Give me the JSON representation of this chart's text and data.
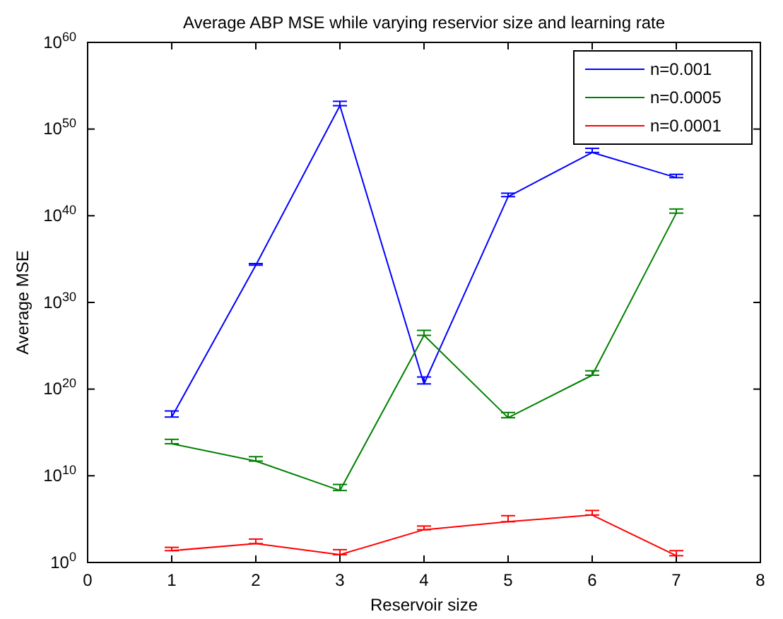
{
  "chart_data": {
    "type": "line",
    "title": "Average ABP MSE while varying reservior size and learning rate",
    "xlabel": "Reservoir size",
    "ylabel": "Average MSE",
    "log": "y",
    "x": [
      1,
      2,
      3,
      4,
      5,
      6,
      7
    ],
    "xlim": [
      0,
      8
    ],
    "xticks": [
      0,
      1,
      2,
      3,
      4,
      5,
      6,
      7,
      8
    ],
    "ylim": [
      1,
      1e+60
    ],
    "yticks": [
      {
        "value": 1,
        "label": "10$^{0}$"
      },
      {
        "value": 10000000000.0,
        "label": "10$^{10}$"
      },
      {
        "value": 1e+20,
        "label": "10$^{20}$"
      },
      {
        "value": 1e+30,
        "label": "10$^{30}$"
      },
      {
        "value": 1e+40,
        "label": "10$^{40}$"
      },
      {
        "value": 1e+50,
        "label": "10$^{50}$"
      },
      {
        "value": 1e+60,
        "label": "10$^{60}$"
      }
    ],
    "legend": "top right",
    "grid": false,
    "marker": "none",
    "line_style": "solid",
    "series": [
      {
        "name": "n=0.001",
        "color": "#0000ff",
        "values": [
          6e+16,
          2e+34,
          5e+52,
          4e+20,
          1.6e+42,
          2e+47,
          2.5e+44
        ],
        "errors": [
          [
            6e+16,
            3e+17
          ],
          [
            2e+34,
            3e+34
          ],
          [
            5e+52,
            1.6e+53
          ],
          [
            4e+20,
            2.5e+21
          ],
          [
            1.6e+42,
            4e+42
          ],
          [
            2e+47,
            6e+47
          ],
          [
            2.5e+44,
            6e+44
          ]
        ]
      },
      {
        "name": "n=0.0005",
        "color": "#008000",
        "values": [
          50000000000000.0,
          500000000000.0,
          200000000.0,
          1.6e+26,
          5e+16,
          4e+21,
          2e+40
        ],
        "errors": [
          [
            50000000000000.0,
            160000000000000.0
          ],
          [
            500000000000.0,
            1600000000000.0
          ],
          [
            200000000.0,
            1000000000.0
          ],
          [
            1.6e+26,
            6e+26
          ],
          [
            5e+16,
            2e+17
          ],
          [
            4e+21,
            1.3e+22
          ],
          [
            2e+40,
            6e+40
          ]
        ]
      },
      {
        "name": "n=0.0001",
        "color": "#ff0000",
        "values": [
          23,
          150,
          8,
          6000,
          50000.0,
          300000.0,
          6
        ],
        "errors": [
          [
            23,
            55
          ],
          [
            150,
            500
          ],
          [
            8,
            30
          ],
          [
            6000,
            16000
          ],
          [
            50000.0,
            250000.0
          ],
          [
            300000.0,
            1000000.0
          ],
          [
            6,
            23
          ]
        ]
      }
    ]
  }
}
